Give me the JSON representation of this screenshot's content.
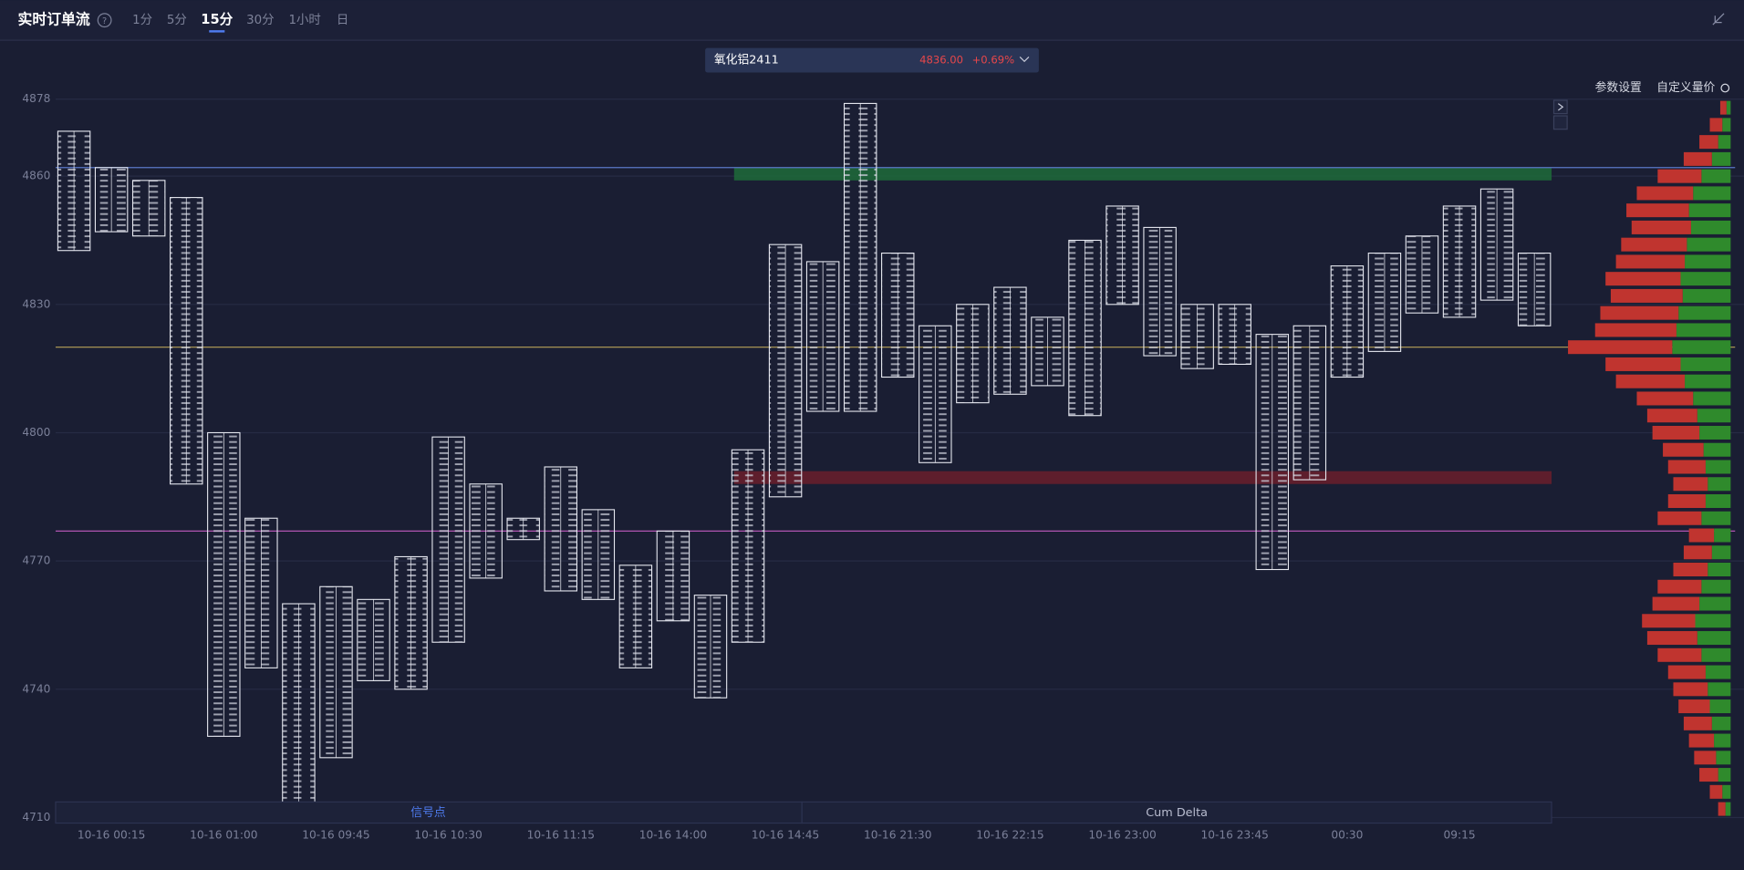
{
  "header": {
    "title": "实时订单流",
    "help": "?",
    "tabs": [
      "1分",
      "5分",
      "15分",
      "30分",
      "1小时",
      "日"
    ],
    "active_tab": 2
  },
  "instrument": {
    "name": "氧化铝2411",
    "price": "4836.00",
    "change": "+0.69%"
  },
  "toolbar": {
    "settings": "参数设置",
    "custom": "自定义量价"
  },
  "chart_data": {
    "type": "footprint",
    "categories": [
      null,
      "10-16 00:15",
      null,
      null,
      "10-16 01:00",
      null,
      null,
      "10-16 09:45",
      null,
      null,
      "10-16 10:30",
      null,
      null,
      "10-16 11:15",
      null,
      null,
      "10-16 14:00",
      null,
      null,
      "10-16 14:45",
      null,
      null,
      "10-16 21:30",
      null,
      null,
      "10-16 22:15",
      null,
      null,
      "10-16 23:00",
      null,
      null,
      "10-16 23:45",
      null,
      null,
      "00:30",
      null,
      null,
      "09:15",
      null,
      null
    ],
    "high": [
      4870.5,
      4862,
      4859,
      4855,
      4800,
      4780,
      4760,
      4764,
      4761,
      4771,
      4799,
      4788,
      4780,
      4792,
      4782,
      4769,
      4777,
      4762,
      4796,
      4844,
      4840,
      4877,
      4842,
      4825,
      4830,
      4834,
      4827,
      4845,
      4853,
      4848,
      4830,
      4830,
      4823,
      4825,
      4839,
      4842,
      4846,
      4853,
      4857,
      4842
    ],
    "low": [
      4842.6,
      4847,
      4846,
      4788,
      4729,
      4745,
      4713,
      4724,
      4742,
      4740,
      4751,
      4766,
      4775,
      4763,
      4761,
      4745,
      4756,
      4738,
      4751,
      4785,
      4805,
      4805,
      4813,
      4793,
      4807,
      4809,
      4811,
      4804,
      4830,
      4818,
      4815,
      4816,
      4768,
      4789,
      4813,
      4819,
      4828,
      4827,
      4831,
      4825
    ],
    "box_color": "#e6e8f0",
    "ylim": [
      4710,
      4878
    ],
    "yticks": [
      4710,
      4740,
      4770,
      4800,
      4830,
      4860,
      4878
    ],
    "grid": true,
    "lines": [
      {
        "value": 4862,
        "color": "#5a78c8"
      },
      {
        "value": 4820,
        "color": "#b7a25a"
      },
      {
        "value": 4777,
        "color": "#c25bc0"
      }
    ],
    "zones": [
      {
        "from": 4859,
        "to": 4862,
        "color": "#1f6b3a"
      },
      {
        "from": 4788,
        "to": 4791,
        "color": "#6b1f2b"
      }
    ],
    "panels": [
      "信号点",
      "Cum Delta"
    ],
    "profile": {
      "prices": [
        4876,
        4872,
        4868,
        4864,
        4860,
        4856,
        4852,
        4848,
        4844,
        4840,
        4836,
        4832,
        4828,
        4824,
        4820,
        4816,
        4812,
        4808,
        4804,
        4800,
        4796,
        4792,
        4788,
        4784,
        4780,
        4776,
        4772,
        4768,
        4764,
        4760,
        4756,
        4752,
        4748,
        4744,
        4740,
        4736,
        4732,
        4728,
        4724,
        4720,
        4716,
        4712
      ],
      "sell": [
        6,
        12,
        18,
        27,
        42,
        54,
        60,
        57,
        63,
        66,
        72,
        69,
        75,
        78,
        100,
        72,
        66,
        54,
        48,
        45,
        39,
        36,
        33,
        36,
        42,
        24,
        27,
        33,
        42,
        45,
        51,
        48,
        42,
        36,
        33,
        30,
        27,
        24,
        21,
        18,
        12,
        7
      ],
      "buy": [
        4,
        8,
        12,
        18,
        28,
        36,
        40,
        38,
        42,
        44,
        48,
        46,
        50,
        52,
        56,
        48,
        44,
        36,
        32,
        30,
        26,
        24,
        22,
        24,
        28,
        16,
        18,
        22,
        28,
        30,
        34,
        32,
        28,
        24,
        22,
        20,
        18,
        16,
        14,
        12,
        8,
        5
      ],
      "xlim": [
        0,
        160
      ],
      "sell_color": "#c0342f",
      "buy_color": "#2f8a2c"
    }
  }
}
